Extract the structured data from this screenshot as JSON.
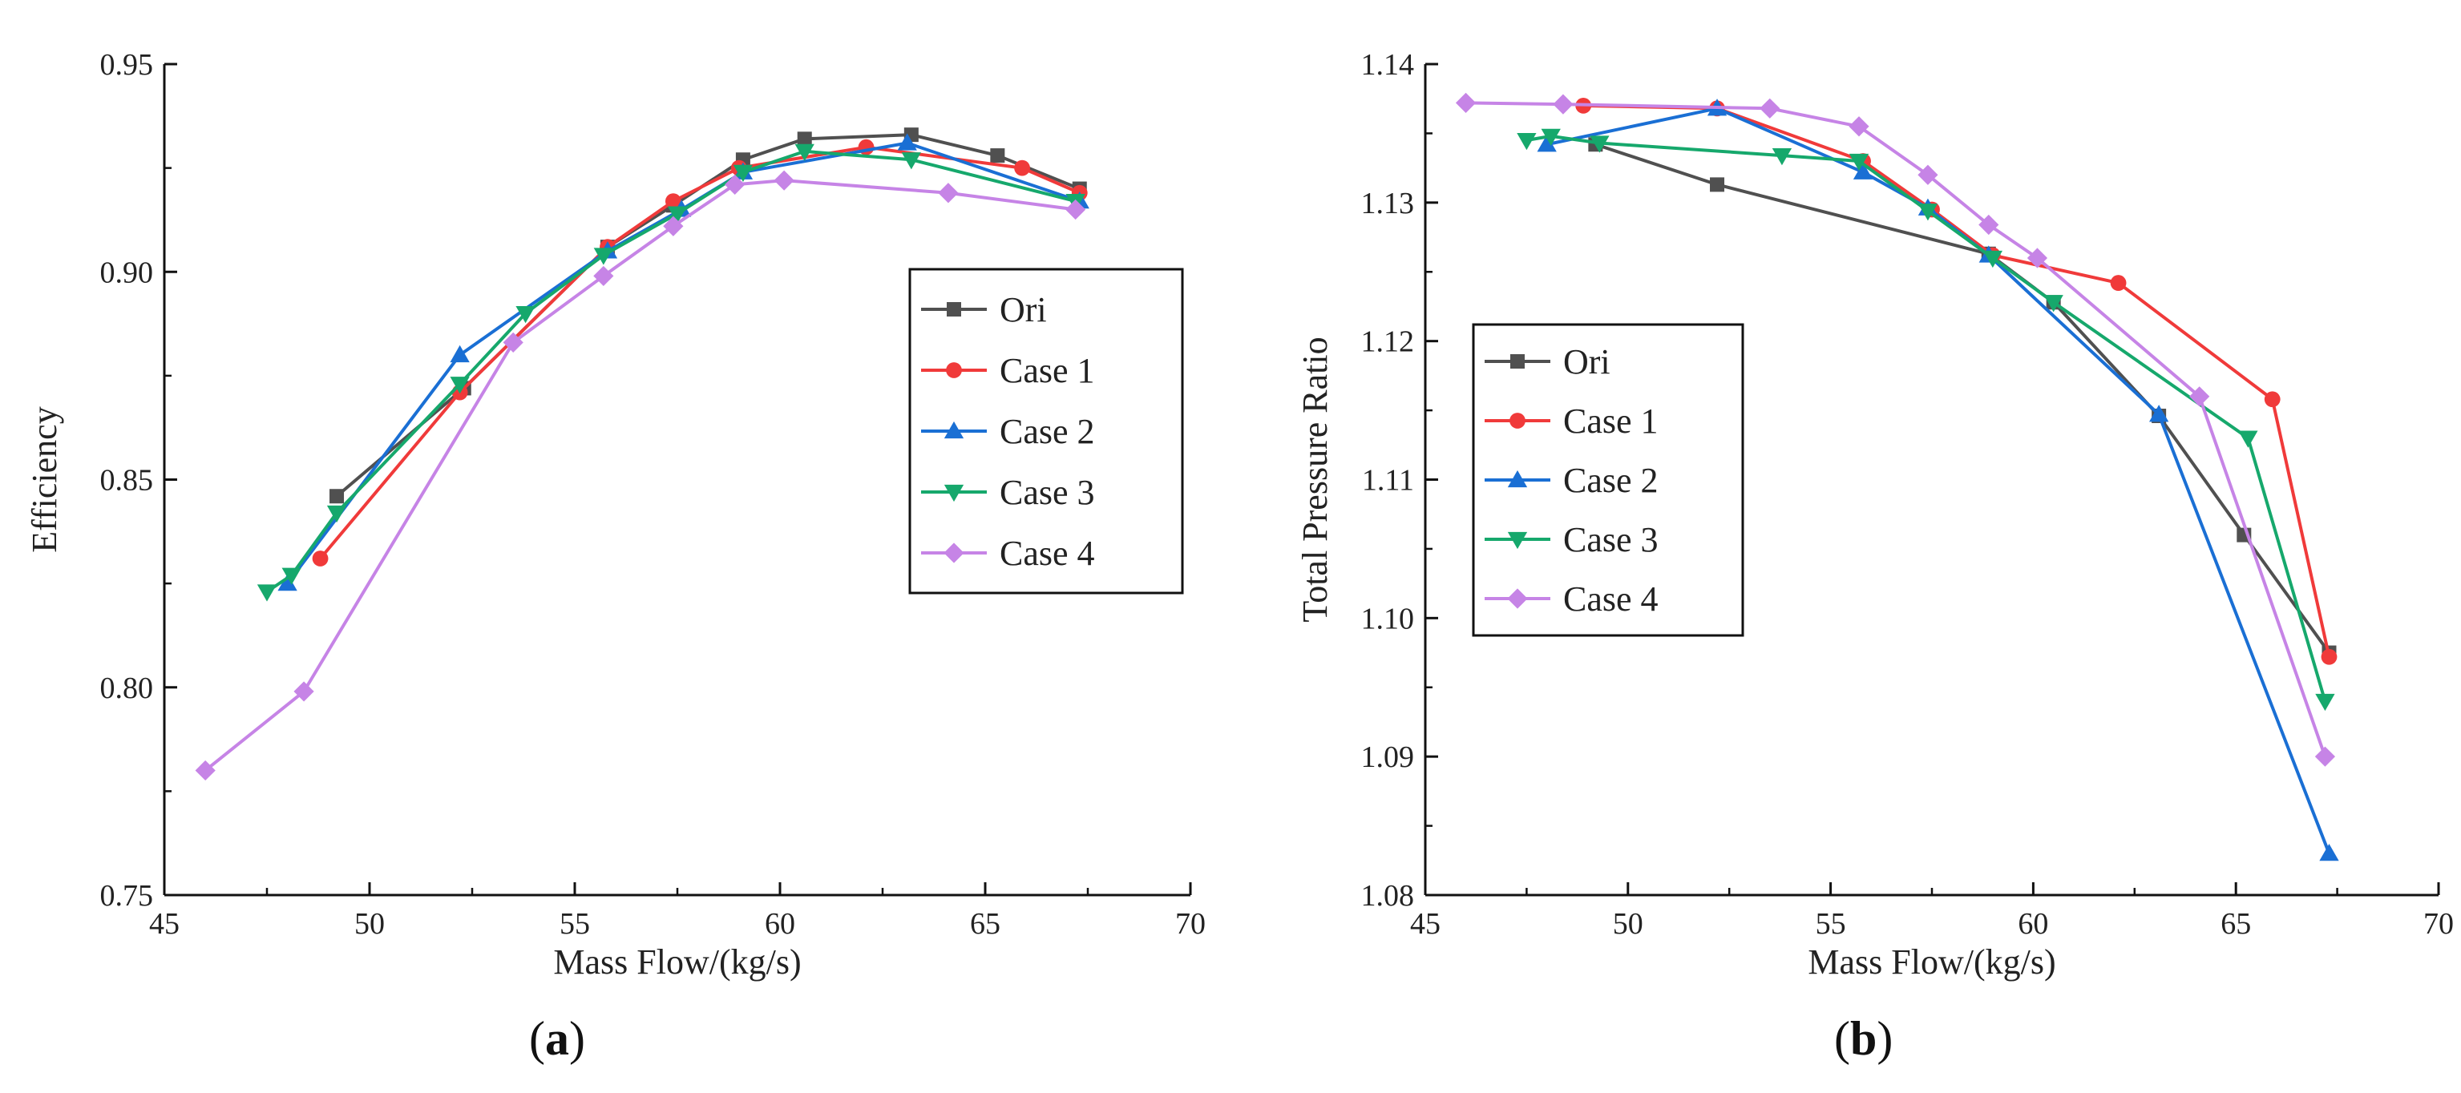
{
  "colors": {
    "Ori": "#505050",
    "Case 1": "#f03a3a",
    "Case 2": "#1a6fd4",
    "Case 3": "#16a86c",
    "Case 4": "#c684e6",
    "axis": "#111111"
  },
  "markers": {
    "Ori": "square",
    "Case 1": "circle",
    "Case 2": "triangle-up",
    "Case 3": "triangle-down",
    "Case 4": "diamond"
  },
  "panels": {
    "a": {
      "open": "(",
      "letter": "a",
      "close": ")"
    },
    "b": {
      "open": "(",
      "letter": "b",
      "close": ")"
    }
  },
  "chart_data": [
    {
      "id": "a",
      "type": "line",
      "title": "",
      "xlabel": "Mass Flow/(kg/s)",
      "ylabel": "Efficiency",
      "xlim": [
        45,
        70
      ],
      "ylim": [
        0.75,
        0.95
      ],
      "xticks": [
        45,
        50,
        55,
        60,
        65,
        70
      ],
      "yticks": [
        0.75,
        0.8,
        0.85,
        0.9,
        0.95
      ],
      "xtick_labels": [
        "45",
        "50",
        "55",
        "60",
        "65",
        "70"
      ],
      "ytick_labels": [
        "0.75",
        "0.80",
        "0.85",
        "0.90",
        "0.95"
      ],
      "grid": false,
      "legend_position": "center-right",
      "series": [
        {
          "name": "Ori",
          "x": [
            49.2,
            52.3,
            55.8,
            57.4,
            59.1,
            60.6,
            63.2,
            65.3,
            67.3
          ],
          "y": [
            0.846,
            0.872,
            0.906,
            0.916,
            0.927,
            0.932,
            0.933,
            0.928,
            0.92
          ]
        },
        {
          "name": "Case 1",
          "x": [
            48.8,
            52.2,
            55.8,
            57.4,
            59.0,
            62.1,
            65.9,
            67.3
          ],
          "y": [
            0.831,
            0.871,
            0.906,
            0.917,
            0.925,
            0.93,
            0.925,
            0.919
          ]
        },
        {
          "name": "Case 2",
          "x": [
            48.0,
            52.2,
            55.8,
            57.6,
            59.1,
            63.1,
            67.3
          ],
          "y": [
            0.825,
            0.88,
            0.905,
            0.915,
            0.924,
            0.931,
            0.917
          ]
        },
        {
          "name": "Case 3",
          "x": [
            47.5,
            48.1,
            49.2,
            52.2,
            53.8,
            55.7,
            57.5,
            59.1,
            60.6,
            63.2,
            67.2
          ],
          "y": [
            0.823,
            0.827,
            0.842,
            0.873,
            0.89,
            0.904,
            0.914,
            0.924,
            0.929,
            0.927,
            0.917
          ]
        },
        {
          "name": "Case 4",
          "x": [
            46.0,
            48.4,
            53.5,
            55.7,
            57.4,
            58.9,
            60.1,
            64.1,
            67.2
          ],
          "y": [
            0.78,
            0.799,
            0.883,
            0.899,
            0.911,
            0.921,
            0.922,
            0.919,
            0.915
          ]
        }
      ]
    },
    {
      "id": "b",
      "type": "line",
      "title": "",
      "xlabel": "Mass Flow/(kg/s)",
      "ylabel": "Total Pressure Ratio",
      "xlim": [
        45,
        70
      ],
      "ylim": [
        1.08,
        1.14
      ],
      "xticks": [
        45,
        50,
        55,
        60,
        65,
        70
      ],
      "yticks": [
        1.08,
        1.09,
        1.1,
        1.11,
        1.12,
        1.13,
        1.14
      ],
      "xtick_labels": [
        "45",
        "50",
        "55",
        "60",
        "65",
        "70"
      ],
      "ytick_labels": [
        "1.08",
        "1.09",
        "1.10",
        "1.11",
        "1.12",
        "1.13",
        "1.14"
      ],
      "grid": false,
      "legend_position": "center-left",
      "series": [
        {
          "name": "Ori",
          "x": [
            49.2,
            52.2,
            58.9,
            60.5,
            63.1,
            65.2,
            67.3
          ],
          "y": [
            1.1342,
            1.1313,
            1.1263,
            1.1228,
            1.1146,
            1.106,
            1.0975
          ]
        },
        {
          "name": "Case 1",
          "x": [
            48.9,
            52.2,
            55.8,
            57.5,
            59.0,
            62.1,
            65.9,
            67.3
          ],
          "y": [
            1.137,
            1.1368,
            1.133,
            1.1295,
            1.1262,
            1.1242,
            1.1158,
            1.0972
          ]
        },
        {
          "name": "Case 2",
          "x": [
            48.0,
            52.2,
            55.8,
            57.4,
            58.9,
            63.1,
            67.3
          ],
          "y": [
            1.1342,
            1.1368,
            1.1322,
            1.1296,
            1.1262,
            1.1147,
            1.083
          ]
        },
        {
          "name": "Case 3",
          "x": [
            47.5,
            48.1,
            49.3,
            53.8,
            55.7,
            57.4,
            59.0,
            60.5,
            65.3,
            67.2
          ],
          "y": [
            1.1345,
            1.1348,
            1.1343,
            1.1334,
            1.133,
            1.1294,
            1.126,
            1.1228,
            1.113,
            1.094
          ]
        },
        {
          "name": "Case 4",
          "x": [
            46.0,
            48.4,
            53.5,
            55.7,
            57.4,
            58.9,
            60.1,
            64.1,
            67.2
          ],
          "y": [
            1.1372,
            1.1371,
            1.1368,
            1.1355,
            1.132,
            1.1284,
            1.126,
            1.116,
            1.09
          ]
        }
      ]
    }
  ]
}
